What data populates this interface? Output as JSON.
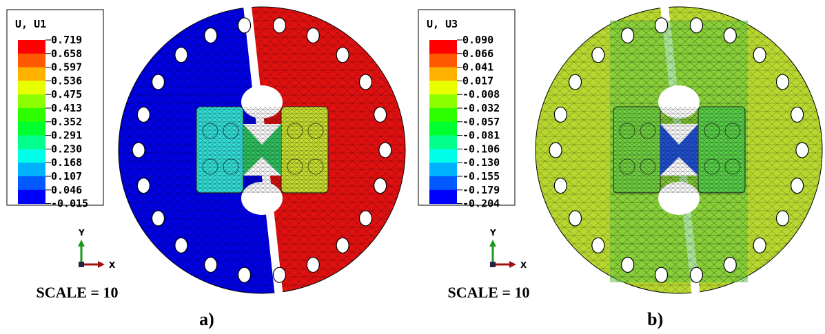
{
  "panels": [
    {
      "legend": {
        "title": "U, U1",
        "labels": [
          "0.719",
          "0.658",
          "0.597",
          "0.536",
          "0.475",
          "0.413",
          "0.352",
          "0.291",
          "0.230",
          "0.168",
          "0.107",
          "0.046",
          "-0.015"
        ]
      },
      "axis_y": "Y",
      "axis_x": "X",
      "scale": "SCALE = 10",
      "caption": "a)"
    },
    {
      "legend": {
        "title": "U, U3",
        "labels": [
          "0.090",
          "0.066",
          "0.041",
          "0.017",
          "-0.008",
          "-0.032",
          "-0.057",
          "-0.081",
          "-0.106",
          "-0.130",
          "-0.155",
          "-0.179",
          "-0.204"
        ]
      },
      "axis_y": "Y",
      "axis_x": "X",
      "scale": "SCALE = 10",
      "caption": "b)"
    }
  ]
}
